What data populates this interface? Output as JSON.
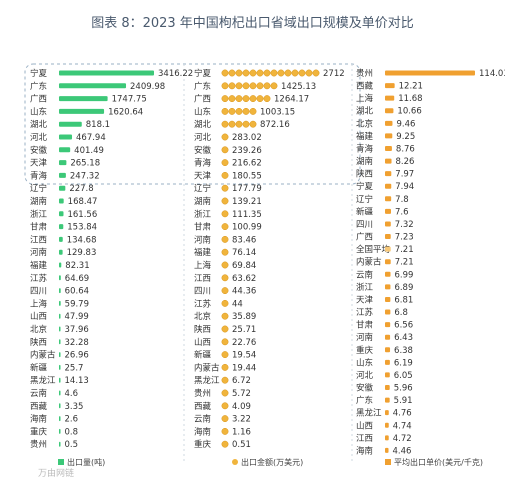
{
  "watermark": "万由网链",
  "chart_data": [
    {
      "type": "bar",
      "title": "图表 8：2023 年中国枸杞出口省域出口规模及单价对比",
      "orientation": "horizontal",
      "series": [
        {
          "name": "出口量(吨)",
          "color": "#3cc878",
          "categories": [
            "宁夏",
            "广东",
            "广西",
            "山东",
            "湖北",
            "河北",
            "安徽",
            "天津",
            "青海",
            "辽宁",
            "湖南",
            "浙江",
            "甘肃",
            "江西",
            "河南",
            "福建",
            "江苏",
            "四川",
            "上海",
            "山西",
            "北京",
            "陕西",
            "内蒙古",
            "新疆",
            "黑龙江",
            "云南",
            "西藏",
            "海南",
            "重庆",
            "贵州"
          ],
          "values": [
            3416.22,
            2409.98,
            1747.75,
            1620.64,
            818.1,
            467.94,
            401.49,
            265.18,
            247.32,
            227.8,
            168.47,
            161.56,
            153.84,
            134.68,
            129.83,
            82.31,
            64.69,
            60.64,
            59.79,
            47.99,
            37.96,
            32.28,
            26.96,
            25.7,
            14.13,
            4.6,
            3.35,
            2.6,
            0.8,
            0.5
          ]
        },
        {
          "name": "出口金额(万美元)",
          "color": "#f0b43c",
          "categories": [
            "宁夏",
            "广东",
            "广西",
            "山东",
            "湖北",
            "河北",
            "安徽",
            "青海",
            "天津",
            "辽宁",
            "湖南",
            "浙江",
            "甘肃",
            "河南",
            "福建",
            "上海",
            "江西",
            "四川",
            "江苏",
            "北京",
            "陕西",
            "山西",
            "新疆",
            "内蒙古",
            "黑龙江",
            "贵州",
            "西藏",
            "云南",
            "海南",
            "重庆"
          ],
          "values": [
            2712,
            1425.13,
            1264.17,
            1003.15,
            872.16,
            283.02,
            239.26,
            216.62,
            180.55,
            177.79,
            139.21,
            111.35,
            100.99,
            83.46,
            76.14,
            69.84,
            63.62,
            44.36,
            44,
            35.89,
            25.71,
            22.76,
            19.54,
            19.44,
            6.72,
            5.72,
            4.09,
            3.22,
            1.16,
            0.51
          ]
        },
        {
          "name": "平均出口单价(美元/千克)",
          "color": "#f0a030",
          "average_category": "全国平均",
          "categories": [
            "贵州",
            "西藏",
            "上海",
            "湖北",
            "北京",
            "福建",
            "青海",
            "湖南",
            "陕西",
            "宁夏",
            "辽宁",
            "新疆",
            "四川",
            "广西",
            "全国平均",
            "内蒙古",
            "云南",
            "浙江",
            "天津",
            "江苏",
            "甘肃",
            "河南",
            "重庆",
            "山东",
            "河北",
            "安徽",
            "广东",
            "黑龙江",
            "山西",
            "江西",
            "海南"
          ],
          "values": [
            114.03,
            12.21,
            11.68,
            10.66,
            9.46,
            9.25,
            8.76,
            8.26,
            7.97,
            7.94,
            7.8,
            7.6,
            7.32,
            7.23,
            7.21,
            7.21,
            6.99,
            6.89,
            6.81,
            6.8,
            6.56,
            6.43,
            6.38,
            6.19,
            6.05,
            5.96,
            5.91,
            4.76,
            4.74,
            4.72,
            4.46
          ]
        }
      ]
    }
  ]
}
